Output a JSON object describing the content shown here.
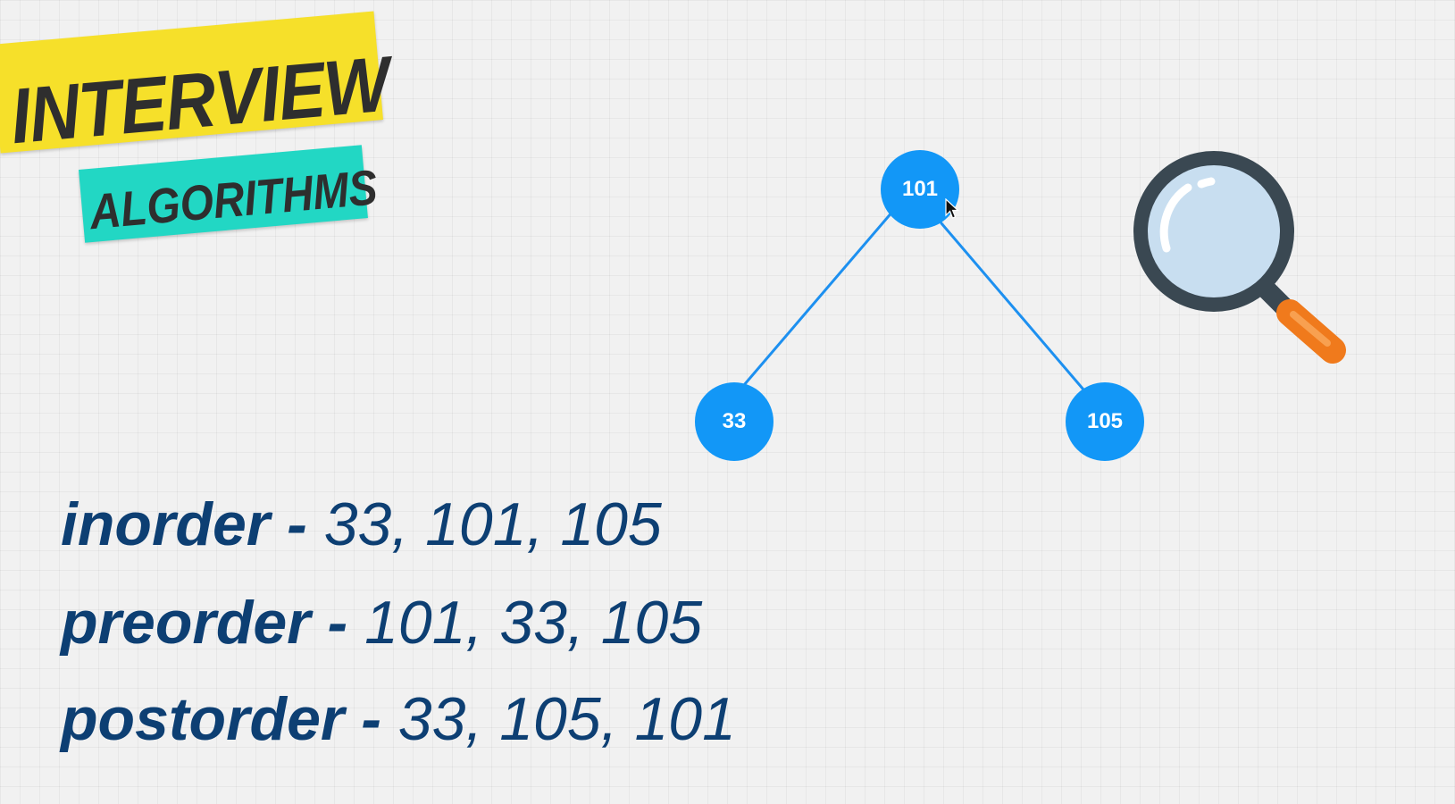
{
  "logo": {
    "line1": "INTERVIEW",
    "line2": "ALGORITHMS",
    "colors": {
      "top_band": "#f6e02a",
      "bottom_band": "#22d7c4",
      "text": "#2e2e2e"
    }
  },
  "tree": {
    "nodes": {
      "root": "101",
      "left": "33",
      "right": "105"
    },
    "node_color": "#1297f7",
    "edge_color": "#1d90f0"
  },
  "traversals": [
    {
      "name": "inorder",
      "separator": " - ",
      "sequence": "33, 101, 105"
    },
    {
      "name": "preorder",
      "separator": " - ",
      "sequence": "101, 33, 105"
    },
    {
      "name": "postorder",
      "separator": " - ",
      "sequence": "33, 105, 101"
    }
  ],
  "icons": {
    "magnifier": "magnifying-glass-icon",
    "cursor": "mouse-pointer-icon"
  },
  "text_color": "#0d3f73"
}
